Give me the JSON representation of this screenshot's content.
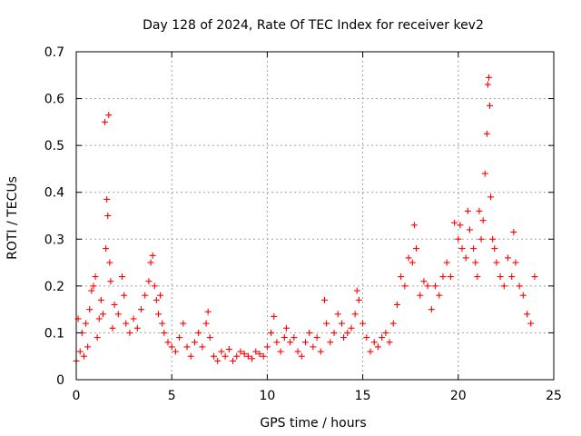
{
  "chart_data": {
    "type": "scatter",
    "title": "Day 128 of 2024, Rate Of TEC Index for receiver kev2",
    "xlabel": "GPS time / hours",
    "ylabel": "ROTI / TECUs",
    "xlim": [
      0,
      25
    ],
    "ylim": [
      0,
      0.7
    ],
    "xticks": [
      0,
      5,
      10,
      15,
      20,
      25
    ],
    "xtick_labels": [
      "0",
      "5",
      "10",
      "15",
      "20",
      "25"
    ],
    "yticks": [
      0,
      0.1,
      0.2,
      0.3,
      0.4,
      0.5,
      0.6,
      0.7
    ],
    "ytick_labels": [
      "0",
      "0.1",
      "0.2",
      "0.3",
      "0.4",
      "0.5",
      "0.6",
      "0.7"
    ],
    "grid": true,
    "marker": "+",
    "color": "#ff0000",
    "series": [
      {
        "name": "ROTI",
        "points": [
          [
            0.0,
            0.04
          ],
          [
            0.1,
            0.13
          ],
          [
            0.2,
            0.06
          ],
          [
            0.3,
            0.1
          ],
          [
            0.4,
            0.05
          ],
          [
            0.5,
            0.12
          ],
          [
            0.6,
            0.07
          ],
          [
            0.7,
            0.15
          ],
          [
            0.8,
            0.19
          ],
          [
            0.9,
            0.2
          ],
          [
            1.0,
            0.22
          ],
          [
            1.1,
            0.09
          ],
          [
            1.2,
            0.13
          ],
          [
            1.3,
            0.17
          ],
          [
            1.4,
            0.14
          ],
          [
            1.5,
            0.55
          ],
          [
            1.55,
            0.28
          ],
          [
            1.6,
            0.385
          ],
          [
            1.65,
            0.35
          ],
          [
            1.7,
            0.565
          ],
          [
            1.75,
            0.25
          ],
          [
            1.8,
            0.21
          ],
          [
            1.9,
            0.11
          ],
          [
            2.0,
            0.16
          ],
          [
            2.2,
            0.14
          ],
          [
            2.4,
            0.22
          ],
          [
            2.5,
            0.18
          ],
          [
            2.6,
            0.12
          ],
          [
            2.8,
            0.1
          ],
          [
            3.0,
            0.13
          ],
          [
            3.2,
            0.11
          ],
          [
            3.4,
            0.15
          ],
          [
            3.6,
            0.18
          ],
          [
            3.8,
            0.21
          ],
          [
            3.9,
            0.25
          ],
          [
            4.0,
            0.265
          ],
          [
            4.1,
            0.2
          ],
          [
            4.2,
            0.17
          ],
          [
            4.3,
            0.14
          ],
          [
            4.4,
            0.18
          ],
          [
            4.5,
            0.12
          ],
          [
            4.6,
            0.1
          ],
          [
            4.8,
            0.08
          ],
          [
            5.0,
            0.07
          ],
          [
            5.2,
            0.06
          ],
          [
            5.4,
            0.09
          ],
          [
            5.6,
            0.12
          ],
          [
            5.8,
            0.07
          ],
          [
            6.0,
            0.05
          ],
          [
            6.2,
            0.08
          ],
          [
            6.4,
            0.1
          ],
          [
            6.6,
            0.07
          ],
          [
            6.8,
            0.12
          ],
          [
            6.9,
            0.145
          ],
          [
            7.0,
            0.09
          ],
          [
            7.2,
            0.05
          ],
          [
            7.4,
            0.04
          ],
          [
            7.6,
            0.06
          ],
          [
            7.8,
            0.05
          ],
          [
            8.0,
            0.065
          ],
          [
            8.2,
            0.04
          ],
          [
            8.4,
            0.05
          ],
          [
            8.6,
            0.06
          ],
          [
            8.8,
            0.055
          ],
          [
            9.0,
            0.05
          ],
          [
            9.2,
            0.045
          ],
          [
            9.4,
            0.06
          ],
          [
            9.6,
            0.055
          ],
          [
            9.8,
            0.05
          ],
          [
            10.0,
            0.07
          ],
          [
            10.2,
            0.1
          ],
          [
            10.35,
            0.135
          ],
          [
            10.5,
            0.08
          ],
          [
            10.7,
            0.06
          ],
          [
            10.9,
            0.09
          ],
          [
            11.0,
            0.11
          ],
          [
            11.2,
            0.08
          ],
          [
            11.4,
            0.09
          ],
          [
            11.6,
            0.06
          ],
          [
            11.8,
            0.05
          ],
          [
            12.0,
            0.08
          ],
          [
            12.2,
            0.1
          ],
          [
            12.4,
            0.07
          ],
          [
            12.6,
            0.09
          ],
          [
            12.8,
            0.06
          ],
          [
            13.0,
            0.17
          ],
          [
            13.1,
            0.12
          ],
          [
            13.3,
            0.08
          ],
          [
            13.5,
            0.1
          ],
          [
            13.7,
            0.14
          ],
          [
            13.9,
            0.12
          ],
          [
            14.0,
            0.09
          ],
          [
            14.2,
            0.1
          ],
          [
            14.4,
            0.11
          ],
          [
            14.6,
            0.14
          ],
          [
            14.7,
            0.19
          ],
          [
            14.8,
            0.17
          ],
          [
            15.0,
            0.12
          ],
          [
            15.2,
            0.09
          ],
          [
            15.4,
            0.06
          ],
          [
            15.6,
            0.08
          ],
          [
            15.8,
            0.07
          ],
          [
            16.0,
            0.09
          ],
          [
            16.2,
            0.1
          ],
          [
            16.4,
            0.08
          ],
          [
            16.6,
            0.12
          ],
          [
            16.8,
            0.16
          ],
          [
            17.0,
            0.22
          ],
          [
            17.2,
            0.2
          ],
          [
            17.4,
            0.26
          ],
          [
            17.6,
            0.25
          ],
          [
            17.7,
            0.33
          ],
          [
            17.8,
            0.28
          ],
          [
            18.0,
            0.18
          ],
          [
            18.2,
            0.21
          ],
          [
            18.4,
            0.2
          ],
          [
            18.6,
            0.15
          ],
          [
            18.8,
            0.2
          ],
          [
            19.0,
            0.18
          ],
          [
            19.2,
            0.22
          ],
          [
            19.4,
            0.25
          ],
          [
            19.6,
            0.22
          ],
          [
            19.8,
            0.335
          ],
          [
            20.0,
            0.3
          ],
          [
            20.1,
            0.33
          ],
          [
            20.2,
            0.28
          ],
          [
            20.4,
            0.26
          ],
          [
            20.5,
            0.36
          ],
          [
            20.6,
            0.32
          ],
          [
            20.8,
            0.28
          ],
          [
            20.9,
            0.25
          ],
          [
            21.0,
            0.22
          ],
          [
            21.1,
            0.36
          ],
          [
            21.2,
            0.3
          ],
          [
            21.3,
            0.34
          ],
          [
            21.4,
            0.44
          ],
          [
            21.5,
            0.525
          ],
          [
            21.55,
            0.63
          ],
          [
            21.6,
            0.645
          ],
          [
            21.65,
            0.585
          ],
          [
            21.7,
            0.39
          ],
          [
            21.8,
            0.3
          ],
          [
            21.9,
            0.28
          ],
          [
            22.0,
            0.25
          ],
          [
            22.2,
            0.22
          ],
          [
            22.4,
            0.2
          ],
          [
            22.6,
            0.26
          ],
          [
            22.8,
            0.22
          ],
          [
            22.9,
            0.315
          ],
          [
            23.0,
            0.25
          ],
          [
            23.2,
            0.2
          ],
          [
            23.4,
            0.18
          ],
          [
            23.6,
            0.14
          ],
          [
            23.8,
            0.12
          ],
          [
            24.0,
            0.22
          ]
        ]
      }
    ]
  }
}
